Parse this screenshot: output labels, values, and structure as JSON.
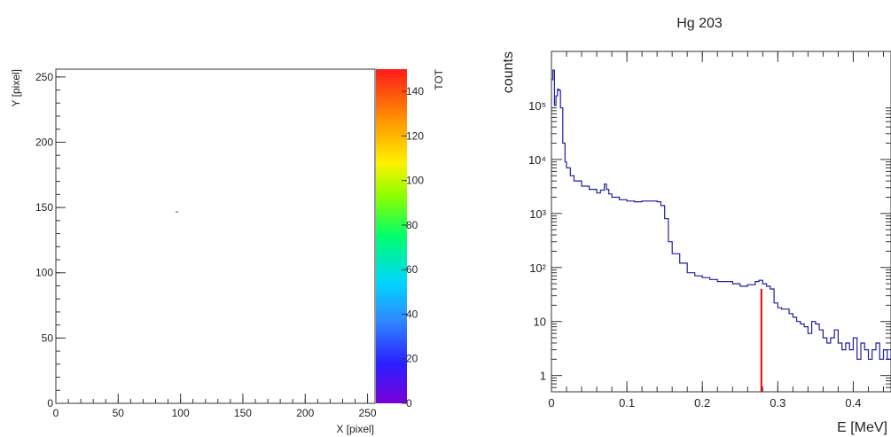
{
  "chart_data": [
    {
      "type": "heatmap",
      "title": "",
      "xlabel": "X [pixel]",
      "ylabel": "Y [pixel]",
      "xlim": [
        0,
        256
      ],
      "ylim": [
        0,
        256
      ],
      "xticks": [
        0,
        50,
        100,
        150,
        200,
        250
      ],
      "yticks": [
        0,
        50,
        100,
        150,
        200,
        250
      ],
      "colorbar": {
        "label": "TOT",
        "range": [
          0,
          150
        ],
        "ticks": [
          0,
          20,
          40,
          60,
          80,
          100,
          120,
          140
        ]
      },
      "points": [
        {
          "x": 96,
          "y": 146,
          "value": 10
        }
      ],
      "grid": false
    },
    {
      "type": "line",
      "title": "Hg 203",
      "xlabel": "E [MeV]",
      "ylabel": "counts",
      "xlim": [
        0,
        0.45
      ],
      "ylim": [
        0.5,
        1000000
      ],
      "yscale": "log",
      "xticks": [
        0,
        0.1,
        0.2,
        0.3,
        0.4
      ],
      "yticks": [
        {
          "value": 1,
          "label": "1"
        },
        {
          "value": 10,
          "label": "10"
        },
        {
          "value": 100,
          "label": "10²"
        },
        {
          "value": 1000,
          "label": "10³"
        },
        {
          "value": 10000,
          "label": "10⁴"
        },
        {
          "value": 100000,
          "label": "10⁵"
        }
      ],
      "series": [
        {
          "color": "#1f1f9f",
          "x": [
            0.0,
            0.002,
            0.004,
            0.006,
            0.008,
            0.01,
            0.012,
            0.015,
            0.018,
            0.02,
            0.025,
            0.03,
            0.04,
            0.05,
            0.06,
            0.065,
            0.07,
            0.073,
            0.076,
            0.08,
            0.09,
            0.1,
            0.11,
            0.12,
            0.13,
            0.14,
            0.145,
            0.15,
            0.155,
            0.16,
            0.17,
            0.18,
            0.19,
            0.2,
            0.21,
            0.22,
            0.23,
            0.24,
            0.25,
            0.26,
            0.27,
            0.275,
            0.28,
            0.285,
            0.29,
            0.295,
            0.3,
            0.305,
            0.31,
            0.315,
            0.32,
            0.325,
            0.33,
            0.335,
            0.34,
            0.345,
            0.35,
            0.355,
            0.36,
            0.365,
            0.37,
            0.375,
            0.38,
            0.385,
            0.39,
            0.395,
            0.4,
            0.405,
            0.41,
            0.415,
            0.42,
            0.425,
            0.43,
            0.435,
            0.44,
            0.445,
            0.45
          ],
          "y": [
            300000,
            450000,
            100000,
            150000,
            200000,
            190000,
            90000,
            20000,
            9000,
            7000,
            5000,
            4000,
            3200,
            2800,
            2400,
            2700,
            3500,
            2800,
            2300,
            2000,
            1800,
            1700,
            1650,
            1700,
            1700,
            1650,
            1400,
            800,
            300,
            180,
            120,
            80,
            70,
            65,
            60,
            55,
            55,
            50,
            45,
            48,
            55,
            58,
            50,
            45,
            40,
            22,
            18,
            17,
            17,
            14,
            12,
            10,
            9,
            8,
            6,
            10,
            9,
            7,
            5,
            4,
            5,
            7,
            4,
            3,
            4,
            3,
            5,
            2,
            4,
            3,
            2,
            3,
            4,
            2,
            3,
            2,
            3
          ]
        },
        {
          "color": "#ee0000",
          "x": [
            0.2782,
            0.2782
          ],
          "y": [
            0.5,
            40
          ]
        }
      ],
      "grid": false
    }
  ]
}
